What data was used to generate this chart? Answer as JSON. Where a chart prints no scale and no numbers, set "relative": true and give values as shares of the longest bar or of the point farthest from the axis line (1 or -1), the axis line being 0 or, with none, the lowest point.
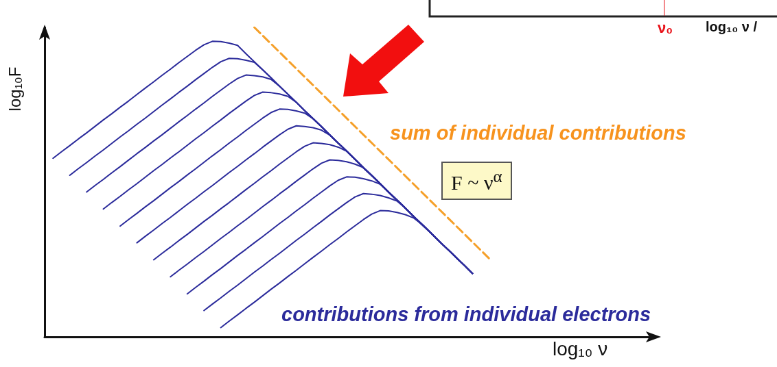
{
  "chart_data": {
    "type": "line",
    "relative": true,
    "xlabel": "log₁₀ ν",
    "ylabel": "log₁₀F",
    "grid": false,
    "marker": "none",
    "line_style": "solid",
    "categories": [
      null,
      null,
      null,
      null,
      null,
      null,
      null,
      null,
      null,
      null,
      null,
      null,
      null,
      null,
      null,
      null,
      null,
      null,
      null,
      null,
      null,
      null,
      null,
      null,
      null,
      null,
      null,
      null,
      null,
      null,
      null,
      null,
      null,
      null,
      null,
      null,
      null,
      null,
      null,
      null,
      null,
      null,
      null,
      null,
      null,
      null,
      null,
      null,
      null,
      null,
      null,
      null,
      null,
      null,
      null,
      null,
      null,
      null,
      null,
      null,
      null,
      null,
      null,
      null,
      null,
      null,
      null,
      null,
      null,
      null,
      null,
      null,
      null
    ],
    "series": [
      {
        "color": "#2b2b9b",
        "values": [
          null,
          0.577,
          0.598,
          0.618,
          0.639,
          0.659,
          0.68,
          0.701,
          0.721,
          0.742,
          0.762,
          0.783,
          0.804,
          0.824,
          0.845,
          0.865,
          0.886,
          0.906,
          0.926,
          0.944,
          0.955,
          0.954,
          0.949,
          0.942,
          0.915,
          0.889,
          0.863,
          0.837,
          0.81,
          0.784,
          0.758,
          0.731,
          0.705,
          0.679,
          0.652,
          0.626,
          0.6,
          0.574,
          0.547,
          0.521,
          0.495,
          0.468,
          0.442,
          0.416,
          0.389,
          0.363,
          0.337,
          0.31,
          0.284,
          0.258,
          0.232,
          0.205,
          null,
          null,
          null,
          null,
          null,
          null,
          null,
          null,
          null,
          null,
          null,
          null,
          null,
          null,
          null,
          null,
          null,
          null,
          null,
          null,
          null
        ]
      },
      {
        "color": "#2b2b9b",
        "values": [
          null,
          null,
          null,
          0.522,
          0.543,
          0.563,
          0.584,
          0.604,
          0.625,
          0.646,
          0.666,
          0.687,
          0.707,
          0.728,
          0.749,
          0.769,
          0.79,
          0.81,
          0.831,
          0.851,
          0.871,
          0.889,
          0.9,
          0.899,
          0.894,
          0.887,
          0.863,
          0.837,
          0.81,
          0.784,
          0.758,
          0.731,
          0.705,
          0.679,
          0.652,
          0.626,
          0.6,
          0.574,
          0.547,
          0.521,
          0.495,
          0.468,
          0.442,
          0.416,
          0.389,
          0.363,
          0.337,
          0.31,
          0.284,
          0.258,
          0.232,
          0.205,
          null,
          null,
          null,
          null,
          null,
          null,
          null,
          null,
          null,
          null,
          null,
          null,
          null,
          null,
          null,
          null,
          null,
          null,
          null,
          null,
          null
        ]
      },
      {
        "color": "#2b2b9b",
        "values": [
          null,
          null,
          null,
          null,
          null,
          0.468,
          0.489,
          0.509,
          0.53,
          0.55,
          0.571,
          0.592,
          0.612,
          0.633,
          0.653,
          0.674,
          0.695,
          0.715,
          0.736,
          0.756,
          0.777,
          0.797,
          0.817,
          0.835,
          0.846,
          0.844,
          0.84,
          0.832,
          0.81,
          0.784,
          0.758,
          0.731,
          0.705,
          0.679,
          0.652,
          0.626,
          0.6,
          0.574,
          0.547,
          0.521,
          0.495,
          0.468,
          0.442,
          0.416,
          0.389,
          0.363,
          0.337,
          0.31,
          0.284,
          0.258,
          0.232,
          0.205,
          null,
          null,
          null,
          null,
          null,
          null,
          null,
          null,
          null,
          null,
          null,
          null,
          null,
          null,
          null,
          null,
          null,
          null,
          null,
          null,
          null
        ]
      },
      {
        "color": "#2b2b9b",
        "values": [
          null,
          null,
          null,
          null,
          null,
          null,
          null,
          0.413,
          0.434,
          0.454,
          0.475,
          0.495,
          0.516,
          0.537,
          0.557,
          0.578,
          0.598,
          0.619,
          0.64,
          0.66,
          0.681,
          0.701,
          0.722,
          0.742,
          0.762,
          0.78,
          0.791,
          0.789,
          0.785,
          0.777,
          0.758,
          0.731,
          0.705,
          0.679,
          0.652,
          0.626,
          0.6,
          0.574,
          0.547,
          0.521,
          0.495,
          0.468,
          0.442,
          0.416,
          0.389,
          0.363,
          0.337,
          0.31,
          0.284,
          0.258,
          0.232,
          0.205,
          null,
          null,
          null,
          null,
          null,
          null,
          null,
          null,
          null,
          null,
          null,
          null,
          null,
          null,
          null,
          null,
          null,
          null,
          null,
          null,
          null
        ]
      },
      {
        "color": "#2b2b9b",
        "values": [
          null,
          null,
          null,
          null,
          null,
          null,
          null,
          null,
          null,
          0.358,
          0.379,
          0.399,
          0.42,
          0.44,
          0.461,
          0.482,
          0.502,
          0.523,
          0.543,
          0.564,
          0.585,
          0.605,
          0.626,
          0.646,
          0.667,
          0.687,
          0.707,
          0.725,
          0.736,
          0.735,
          0.73,
          0.723,
          0.705,
          0.679,
          0.652,
          0.626,
          0.6,
          0.574,
          0.547,
          0.521,
          0.495,
          0.468,
          0.442,
          0.416,
          0.389,
          0.363,
          0.337,
          0.31,
          0.284,
          0.258,
          0.232,
          0.205,
          null,
          null,
          null,
          null,
          null,
          null,
          null,
          null,
          null,
          null,
          null,
          null,
          null,
          null,
          null,
          null,
          null,
          null,
          null,
          null,
          null
        ]
      },
      {
        "color": "#2b2b9b",
        "values": [
          null,
          null,
          null,
          null,
          null,
          null,
          null,
          null,
          null,
          null,
          null,
          0.304,
          0.325,
          0.345,
          0.366,
          0.386,
          0.407,
          0.428,
          0.448,
          0.469,
          0.489,
          0.51,
          0.531,
          0.551,
          0.572,
          0.592,
          0.613,
          0.633,
          0.653,
          0.671,
          0.682,
          0.68,
          0.676,
          0.668,
          0.652,
          0.626,
          0.6,
          0.574,
          0.547,
          0.521,
          0.495,
          0.468,
          0.442,
          0.416,
          0.389,
          0.363,
          0.337,
          0.31,
          0.284,
          0.258,
          0.232,
          0.205,
          null,
          null,
          null,
          null,
          null,
          null,
          null,
          null,
          null,
          null,
          null,
          null,
          null,
          null,
          null,
          null,
          null,
          null,
          null,
          null,
          null
        ]
      },
      {
        "color": "#2b2b9b",
        "values": [
          null,
          null,
          null,
          null,
          null,
          null,
          null,
          null,
          null,
          null,
          null,
          null,
          null,
          0.249,
          0.27,
          0.29,
          0.311,
          0.331,
          0.352,
          0.373,
          0.393,
          0.414,
          0.434,
          0.455,
          0.476,
          0.496,
          0.517,
          0.537,
          0.558,
          0.578,
          0.598,
          0.616,
          0.627,
          0.625,
          0.621,
          0.613,
          0.6,
          0.574,
          0.547,
          0.521,
          0.495,
          0.468,
          0.442,
          0.416,
          0.389,
          0.363,
          0.337,
          0.31,
          0.284,
          0.258,
          0.232,
          0.205,
          null,
          null,
          null,
          null,
          null,
          null,
          null,
          null,
          null,
          null,
          null,
          null,
          null,
          null,
          null,
          null,
          null,
          null,
          null,
          null,
          null
        ]
      },
      {
        "color": "#2b2b9b",
        "values": [
          null,
          null,
          null,
          null,
          null,
          null,
          null,
          null,
          null,
          null,
          null,
          null,
          null,
          null,
          null,
          0.194,
          0.215,
          0.235,
          0.256,
          0.276,
          0.297,
          0.318,
          0.338,
          0.359,
          0.379,
          0.4,
          0.421,
          0.441,
          0.462,
          0.482,
          0.503,
          0.523,
          0.543,
          0.561,
          0.572,
          0.57,
          0.566,
          0.558,
          0.547,
          0.521,
          0.495,
          0.468,
          0.442,
          0.416,
          0.389,
          0.363,
          0.337,
          0.31,
          0.284,
          0.258,
          0.232,
          0.205,
          null,
          null,
          null,
          null,
          null,
          null,
          null,
          null,
          null,
          null,
          null,
          null,
          null,
          null,
          null,
          null,
          null,
          null,
          null,
          null,
          null
        ]
      },
      {
        "color": "#2b2b9b",
        "values": [
          null,
          null,
          null,
          null,
          null,
          null,
          null,
          null,
          null,
          null,
          null,
          null,
          null,
          null,
          null,
          null,
          null,
          0.139,
          0.16,
          0.18,
          0.201,
          0.221,
          0.242,
          0.263,
          0.283,
          0.304,
          0.324,
          0.345,
          0.366,
          0.386,
          0.407,
          0.427,
          0.448,
          0.468,
          0.488,
          0.506,
          0.517,
          0.516,
          0.511,
          0.504,
          0.493,
          0.468,
          0.442,
          0.416,
          0.389,
          0.363,
          0.337,
          0.31,
          0.284,
          0.258,
          0.232,
          0.205,
          null,
          null,
          null,
          null,
          null,
          null,
          null,
          null,
          null,
          null,
          null,
          null,
          null,
          null,
          null,
          null,
          null,
          null,
          null,
          null,
          null
        ]
      },
      {
        "color": "#2b2b9b",
        "values": [
          null,
          null,
          null,
          null,
          null,
          null,
          null,
          null,
          null,
          null,
          null,
          null,
          null,
          null,
          null,
          null,
          null,
          null,
          null,
          0.085,
          0.106,
          0.126,
          0.147,
          0.167,
          0.188,
          0.209,
          0.229,
          0.25,
          0.27,
          0.291,
          0.312,
          0.332,
          0.353,
          0.373,
          0.394,
          0.414,
          0.434,
          0.452,
          0.463,
          0.461,
          0.457,
          0.449,
          0.439,
          0.416,
          0.389,
          0.363,
          0.337,
          0.31,
          0.284,
          0.258,
          0.232,
          0.205,
          null,
          null,
          null,
          null,
          null,
          null,
          null,
          null,
          null,
          null,
          null,
          null,
          null,
          null,
          null,
          null,
          null,
          null,
          null,
          null,
          null
        ]
      },
      {
        "color": "#2b2b9b",
        "values": [
          null,
          null,
          null,
          null,
          null,
          null,
          null,
          null,
          null,
          null,
          null,
          null,
          null,
          null,
          null,
          null,
          null,
          null,
          null,
          null,
          null,
          0.03,
          0.051,
          0.071,
          0.092,
          0.112,
          0.133,
          0.154,
          0.174,
          0.195,
          0.215,
          0.236,
          0.257,
          0.277,
          0.298,
          0.318,
          0.339,
          0.359,
          0.379,
          0.397,
          0.408,
          0.407,
          0.402,
          0.395,
          0.384,
          0.363,
          0.337,
          0.31,
          0.284,
          0.258,
          0.232,
          0.205,
          null,
          null,
          null,
          null,
          null,
          null,
          null,
          null,
          null,
          null,
          null,
          null,
          null,
          null,
          null,
          null,
          null,
          null,
          null,
          null,
          null
        ]
      },
      {
        "color": "#f5a02a",
        "line_style": "dashed",
        "values": [
          null,
          null,
          null,
          null,
          null,
          null,
          null,
          null,
          null,
          null,
          null,
          null,
          null,
          null,
          null,
          null,
          null,
          null,
          null,
          null,
          null,
          null,
          null,
          null,
          null,
          1.0,
          null,
          null,
          null,
          null,
          null,
          null,
          null,
          null,
          null,
          null,
          null,
          null,
          null,
          null,
          null,
          null,
          null,
          null,
          null,
          null,
          null,
          null,
          null,
          null,
          null,
          null,
          null,
          0.253,
          null,
          null,
          null,
          null,
          null,
          null,
          null,
          null,
          null,
          null,
          null,
          null,
          null,
          null,
          null,
          null,
          null,
          null,
          null
        ]
      }
    ],
    "annotations": [
      "sum of individual contributions",
      "F ~ ν$^{α}$",
      "contributions from individual electrons",
      "ν₀",
      "log₁₀ ν /"
    ]
  }
}
